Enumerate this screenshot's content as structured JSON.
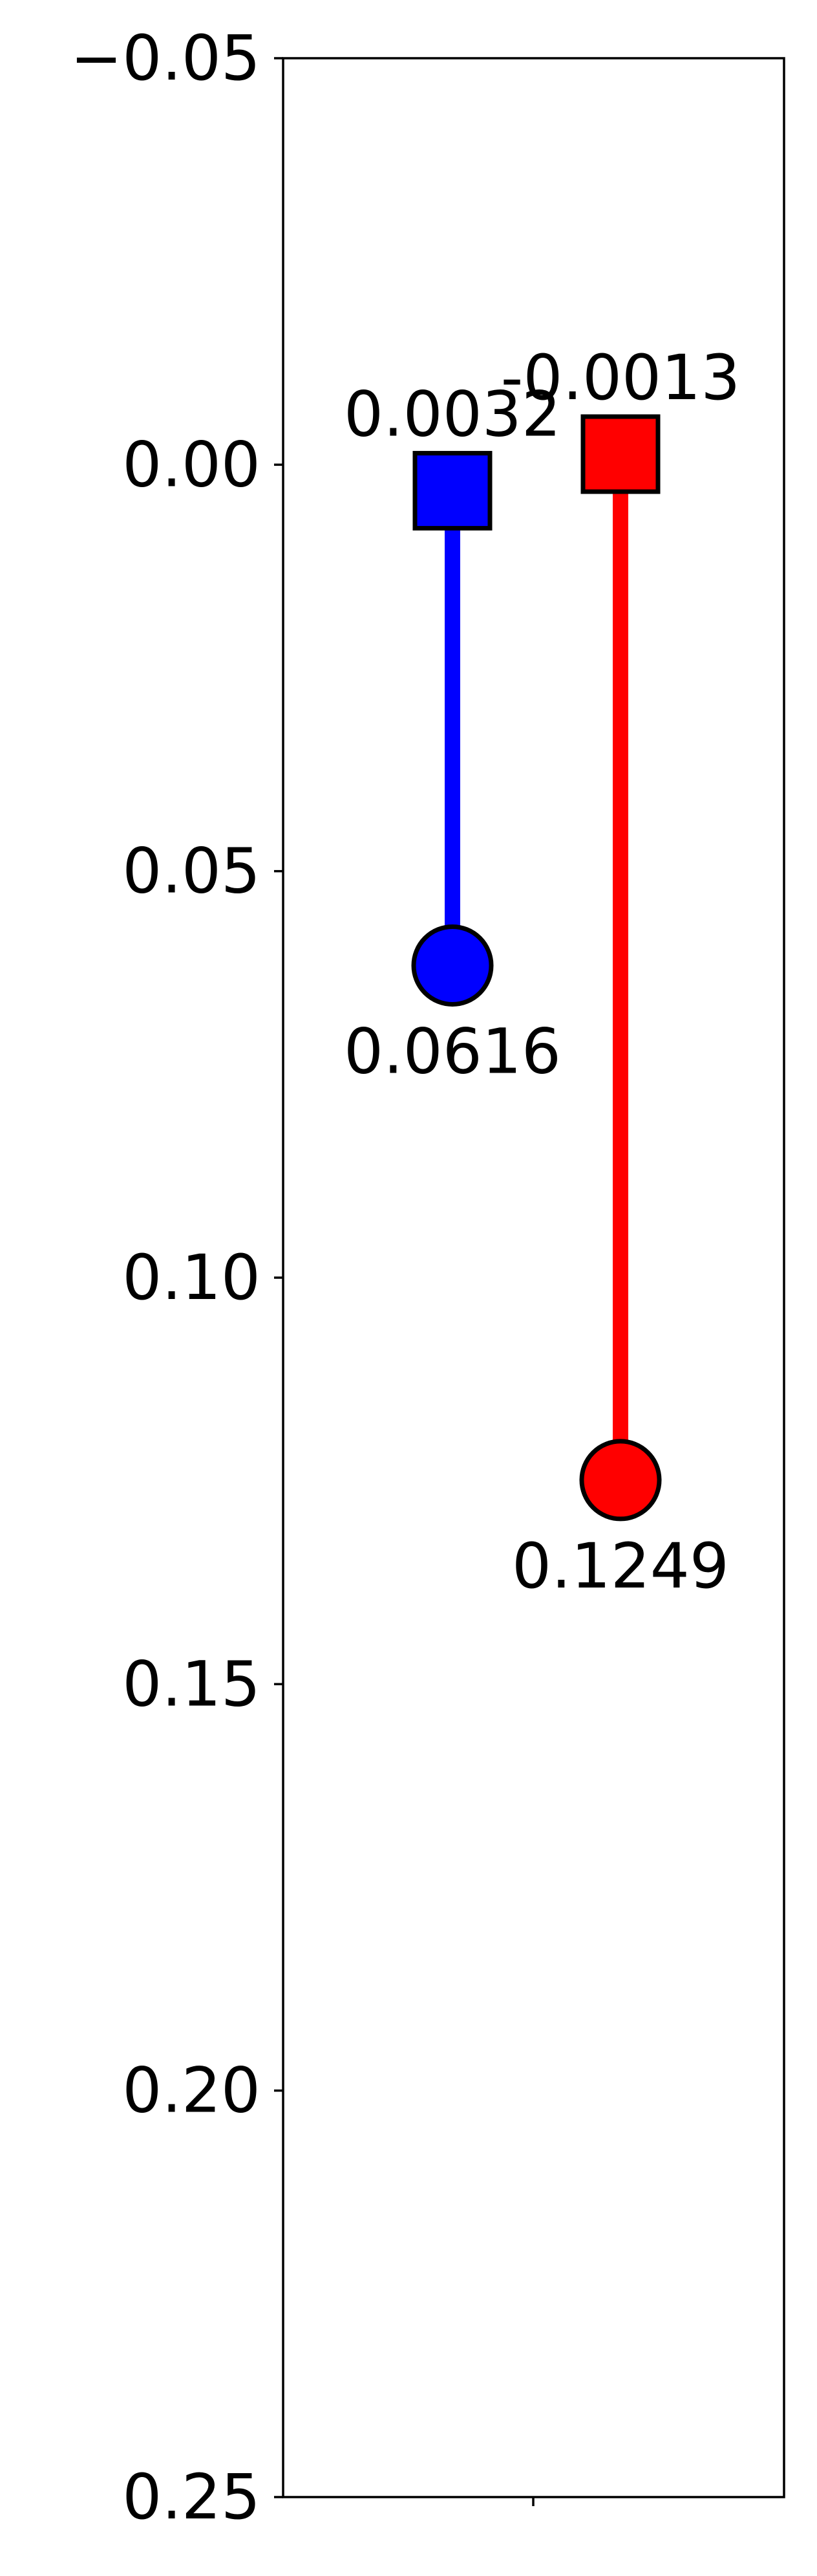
{
  "chart_data": {
    "type": "scatter",
    "title": "",
    "xlabel": "",
    "ylabel": "",
    "ylim": [
      0.25,
      -0.05
    ],
    "y_inverted": true,
    "yticks": [
      "−0.05",
      "0.00",
      "0.05",
      "0.10",
      "0.15",
      "0.20",
      "0.25"
    ],
    "ytick_values": [
      -0.05,
      0.0,
      0.05,
      0.1,
      0.15,
      0.2,
      0.25
    ],
    "grid": false,
    "legend": "none",
    "series": [
      {
        "color": "#0000ff",
        "start": {
          "value": 0.0032,
          "label": "0.0032",
          "marker": "square"
        },
        "end": {
          "value": 0.0616,
          "label": "0.0616",
          "marker": "circle"
        }
      },
      {
        "color": "#ff0000",
        "start": {
          "value": -0.0013,
          "label": "-0.0013",
          "marker": "square"
        },
        "end": {
          "value": 0.1249,
          "label": "0.1249",
          "marker": "circle"
        }
      }
    ]
  }
}
